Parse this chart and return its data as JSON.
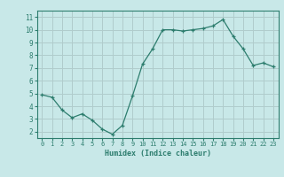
{
  "x": [
    0,
    1,
    2,
    3,
    4,
    5,
    6,
    7,
    8,
    9,
    10,
    11,
    12,
    13,
    14,
    15,
    16,
    17,
    18,
    19,
    20,
    21,
    22,
    23
  ],
  "y": [
    4.9,
    4.7,
    3.7,
    3.1,
    3.4,
    2.9,
    2.2,
    1.8,
    2.5,
    4.8,
    7.3,
    8.5,
    10.0,
    10.0,
    9.9,
    10.0,
    10.1,
    10.3,
    10.8,
    9.5,
    8.5,
    7.2,
    7.4,
    7.1
  ],
  "xlabel": "Humidex (Indice chaleur)",
  "line_color": "#2d7d6e",
  "bg_color": "#c8e8e8",
  "grid_color": "#b0cccc",
  "axis_color": "#2d7d6e",
  "tick_color": "#2d7d6e",
  "ylim": [
    1.5,
    11.5
  ],
  "xlim": [
    -0.5,
    23.5
  ],
  "yticks": [
    2,
    3,
    4,
    5,
    6,
    7,
    8,
    9,
    10,
    11
  ],
  "xticks": [
    0,
    1,
    2,
    3,
    4,
    5,
    6,
    7,
    8,
    9,
    10,
    11,
    12,
    13,
    14,
    15,
    16,
    17,
    18,
    19,
    20,
    21,
    22,
    23
  ]
}
